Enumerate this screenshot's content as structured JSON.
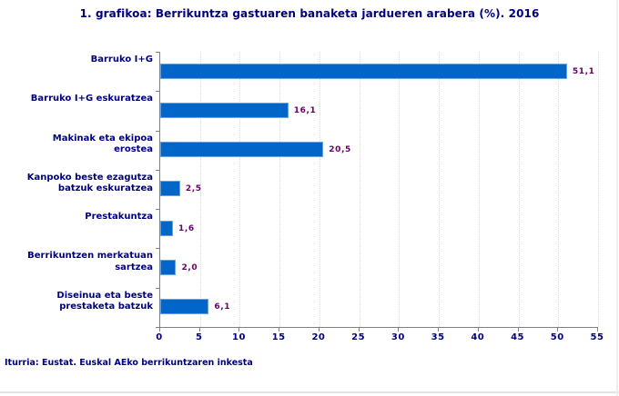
{
  "title": "1. grafikoa: Berrikuntza gastuaren banaketa jardueren arabera (%). 2016",
  "footer": "Iturria: Eustat. Euskal AEko berrikuntzaren inkesta",
  "colors": {
    "bar_fill": "#0266c8",
    "bar_border": "#6ba3dc",
    "value_label": "#660066",
    "text": "#000080",
    "gridline": "#d9d9d9",
    "axis": "#808080"
  },
  "chart_data": {
    "type": "bar",
    "orientation": "horizontal",
    "title": "1. grafikoa: Berrikuntza gastuaren banaketa jardueren arabera (%). 2016",
    "categories": [
      "Barruko I+G",
      "Barruko I+G eskuratzea",
      "Makinak eta ekipoa\nerostea",
      "Kanpoko beste ezagutza\nbatzuk eskuratzea",
      "Prestakuntza",
      "Berrikuntzen merkatuan\nsartzea",
      "Diseinua eta beste\nprestaketa batzuk"
    ],
    "values": [
      51.1,
      16.1,
      20.5,
      2.5,
      1.6,
      2.0,
      6.1
    ],
    "value_labels": [
      "51,1",
      "16,1",
      "20,5",
      "2,5",
      "1,6",
      "2,0",
      "6,1"
    ],
    "xlim": [
      0,
      55
    ],
    "x_ticks": [
      0,
      5,
      10,
      15,
      20,
      25,
      30,
      35,
      40,
      45,
      50,
      55
    ],
    "xlabel": "",
    "ylabel": "",
    "grid": "vertical-dotted",
    "legend": "none",
    "source": "Iturria: Eustat. Euskal AEko berrikuntzaren inkesta"
  }
}
